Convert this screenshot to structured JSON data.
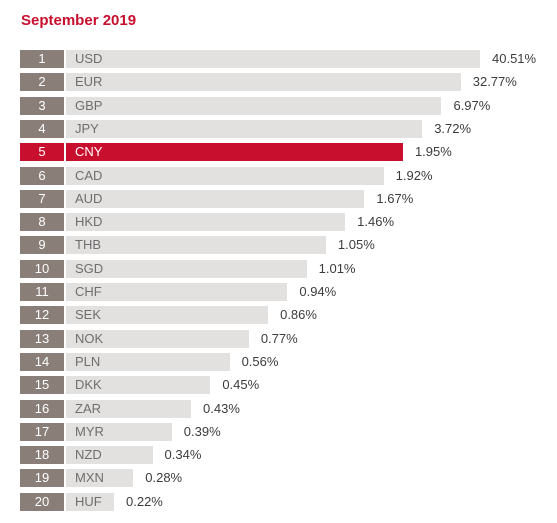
{
  "chart_data": {
    "type": "bar",
    "orientation": "horizontal",
    "title": "September 2019",
    "categories": [
      "USD",
      "EUR",
      "GBP",
      "JPY",
      "CNY",
      "CAD",
      "AUD",
      "HKD",
      "THB",
      "SGD",
      "CHF",
      "SEK",
      "NOK",
      "PLN",
      "DKK",
      "ZAR",
      "MYR",
      "NZD",
      "MXN",
      "HUF"
    ],
    "ranks": [
      "1",
      "2",
      "3",
      "4",
      "5",
      "6",
      "7",
      "8",
      "9",
      "10",
      "11",
      "12",
      "13",
      "14",
      "15",
      "16",
      "17",
      "18",
      "19",
      "20"
    ],
    "values": [
      40.51,
      32.77,
      6.97,
      3.72,
      1.95,
      1.92,
      1.67,
      1.46,
      1.05,
      1.01,
      0.94,
      0.86,
      0.77,
      0.56,
      0.45,
      0.43,
      0.39,
      0.34,
      0.28,
      0.22
    ],
    "value_labels": [
      "40.51%",
      "32.77%",
      "6.97%",
      "3.72%",
      "1.95%",
      "1.92%",
      "1.67%",
      "1.46%",
      "1.05%",
      "1.01%",
      "0.94%",
      "0.86%",
      "0.77%",
      "0.56%",
      "0.45%",
      "0.43%",
      "0.39%",
      "0.34%",
      "0.28%",
      "0.22%"
    ],
    "highlight": "CNY",
    "grid": false,
    "legend": "none",
    "colors": {
      "title": "#c8102e",
      "bar": "#e3e1e0",
      "bar_highlight": "#c8102e",
      "rank_box": "#8a7e78",
      "rank_box_highlight": "#c8102e",
      "code_text": "#6e6e6e",
      "code_text_highlight": "#ffffff",
      "value_text": "#3c3c3c"
    }
  }
}
